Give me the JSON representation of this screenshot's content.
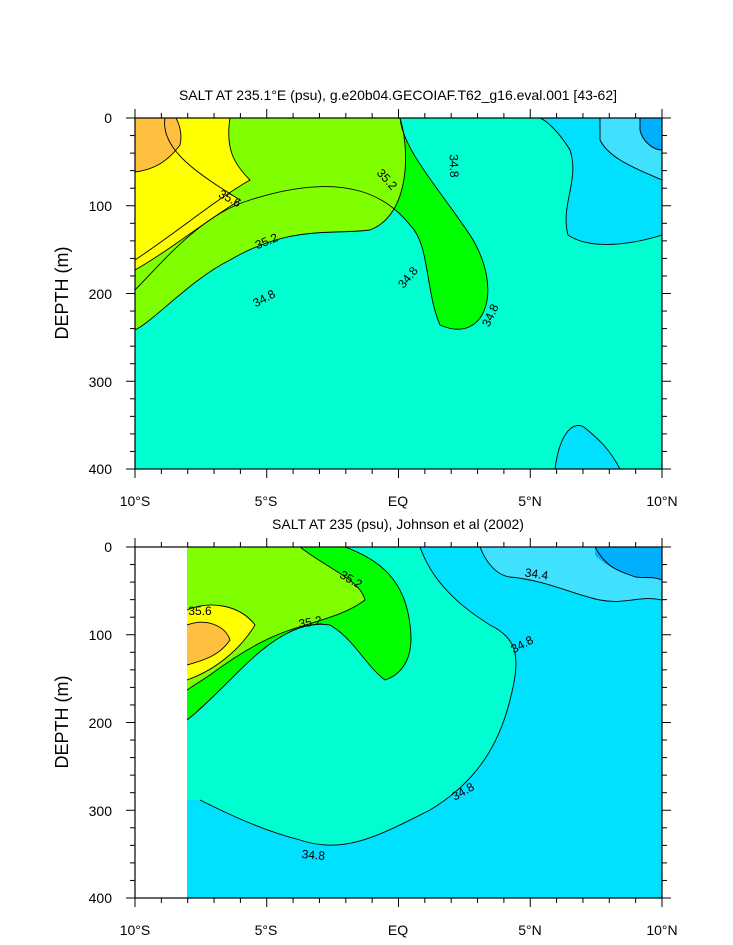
{
  "colors": {
    "c344": "#00e0ff",
    "c348": "#00ffd0",
    "c352": "#00ff00",
    "c356": "#80ff00",
    "c360": "#ffff00",
    "c364": "#ffc040",
    "c340": "#40e0ff",
    "c336": "#00b0ff"
  },
  "chart_data": [
    {
      "type": "contour",
      "title": "SALT AT 235.1°E (psu), g.e20b04.GECOIAF.T62_g16.eval.001 [43-62]",
      "ylabel": "DEPTH (m)",
      "xlabel": "",
      "x_ticks": [
        "10°S",
        "5°S",
        "EQ",
        "5°N",
        "10°N"
      ],
      "y_ticks": [
        "0",
        "100",
        "200",
        "300",
        "400"
      ],
      "xlim": [
        -10,
        10
      ],
      "ylim": [
        400,
        0
      ],
      "contour_interval": 0.4,
      "contour_labels": [
        "35.6",
        "35.2",
        "35.2",
        "34.8",
        "34.8",
        "34.8",
        "34.8"
      ]
    },
    {
      "type": "contour",
      "title": "SALT AT 235 (psu), Johnson et al (2002)",
      "ylabel": "DEPTH (m)",
      "xlabel": "",
      "x_ticks": [
        "10°S",
        "5°S",
        "EQ",
        "5°N",
        "10°N"
      ],
      "y_ticks": [
        "0",
        "100",
        "200",
        "300",
        "400"
      ],
      "xlim": [
        -10,
        10
      ],
      "ylim": [
        400,
        0
      ],
      "data_xlim": [
        -8,
        10
      ],
      "contour_interval": 0.4,
      "contour_labels": [
        "35.6",
        "35.2",
        "35.2",
        "34.4",
        "34.8",
        "34.8",
        "34.8"
      ]
    }
  ]
}
